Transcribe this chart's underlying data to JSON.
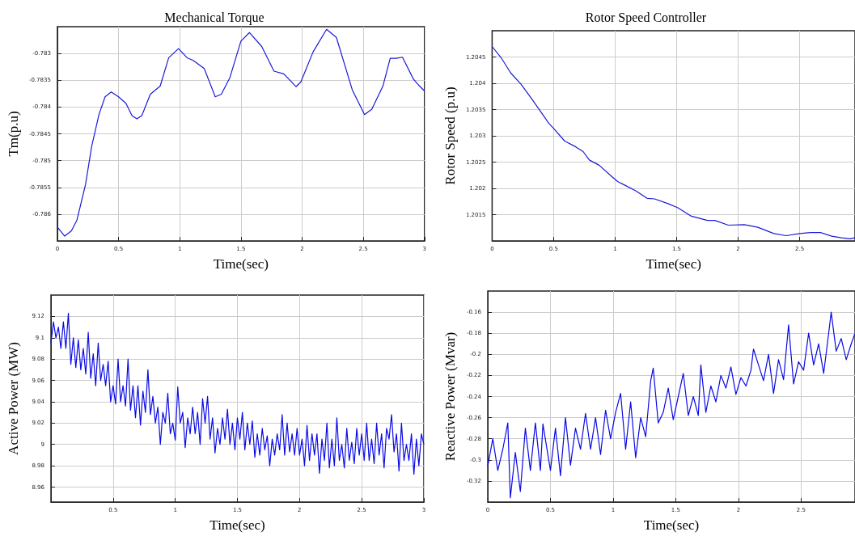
{
  "chart_data": [
    {
      "type": "line",
      "title": "Mechanical Torque",
      "xlabel": "Time(sec)",
      "ylabel": "Tm(p.u)",
      "xlim": [
        0,
        3
      ],
      "xticks": [
        0,
        0.5,
        1,
        1.5,
        2,
        2.5,
        3
      ],
      "ylim": [
        -0.7865,
        -0.7825
      ],
      "yticks": [
        -0.786,
        -0.7855,
        -0.785,
        -0.7845,
        -0.784,
        -0.7835,
        -0.783
      ],
      "grid": true,
      "marker": "none",
      "line_style": "solid",
      "series": [
        {
          "color": "#1a1ad6",
          "x": [
            0,
            0.06,
            0.115,
            0.16,
            0.23,
            0.28,
            0.34,
            0.39,
            0.44,
            0.5,
            0.56,
            0.61,
            0.65,
            0.69,
            0.76,
            0.84,
            0.91,
            0.99,
            1.06,
            1.11,
            1.2,
            1.29,
            1.34,
            1.41,
            1.5,
            1.57,
            1.67,
            1.77,
            1.85,
            1.95,
            1.99,
            2.09,
            2.2,
            2.28,
            2.41,
            2.51,
            2.57,
            2.66,
            2.72,
            2.77,
            2.82,
            2.91,
            2.96,
            3
          ],
          "values": [
            -0.78624,
            -0.78641,
            -0.78631,
            -0.78611,
            -0.78545,
            -0.78474,
            -0.78414,
            -0.78381,
            -0.78372,
            -0.78381,
            -0.78393,
            -0.78416,
            -0.78422,
            -0.78416,
            -0.78376,
            -0.78361,
            -0.78308,
            -0.78291,
            -0.78308,
            -0.78313,
            -0.78328,
            -0.78381,
            -0.78376,
            -0.78345,
            -0.78277,
            -0.78261,
            -0.78287,
            -0.78333,
            -0.78338,
            -0.78362,
            -0.78353,
            -0.78297,
            -0.78255,
            -0.7827,
            -0.78368,
            -0.78414,
            -0.78404,
            -0.78361,
            -0.78309,
            -0.78309,
            -0.78307,
            -0.78348,
            -0.78361,
            -0.7837
          ]
        }
      ]
    },
    {
      "type": "line",
      "title": "Rotor Speed Controller",
      "xlabel": "Time(sec)",
      "ylabel": "Rotor Speed (p.u)",
      "xlim": [
        0,
        2.95
      ],
      "xticks": [
        0,
        0.5,
        1,
        1.5,
        2,
        2.5
      ],
      "ylim": [
        1.201,
        1.205
      ],
      "yticks": [
        1.2015,
        1.202,
        1.2025,
        1.203,
        1.2035,
        1.204,
        1.2045
      ],
      "grid": true,
      "marker": "none",
      "line_style": "solid",
      "series": [
        {
          "color": "#1a1ad6",
          "x": [
            0,
            0.075,
            0.15,
            0.236,
            0.32,
            0.41,
            0.46,
            0.5,
            0.59,
            0.68,
            0.74,
            0.79,
            0.87,
            0.97,
            1.02,
            1.08,
            1.17,
            1.26,
            1.32,
            1.43,
            1.51,
            1.62,
            1.75,
            1.81,
            1.92,
            2.05,
            2.16,
            2.29,
            2.39,
            2.5,
            2.59,
            2.67,
            2.76,
            2.84,
            2.91,
            2.95
          ],
          "values": [
            1.2047,
            1.20448,
            1.2042,
            1.20398,
            1.20371,
            1.20341,
            1.20324,
            1.20314,
            1.2029,
            1.20279,
            1.2027,
            1.20254,
            1.20244,
            1.20223,
            1.20213,
            1.20206,
            1.20195,
            1.20181,
            1.2018,
            1.20171,
            1.20163,
            1.20147,
            1.20139,
            1.20139,
            1.2013,
            1.20131,
            1.20126,
            1.20114,
            1.2011,
            1.20114,
            1.20116,
            1.20116,
            1.20109,
            1.20106,
            1.20104,
            1.20106
          ]
        }
      ]
    },
    {
      "type": "line",
      "xlabel": "Time(sec)",
      "ylabel": "Active Power (MW)",
      "xlim": [
        0,
        3
      ],
      "xticks": [
        0.5,
        1,
        1.5,
        2,
        2.5,
        3
      ],
      "ylim": [
        8.946,
        9.14
      ],
      "yticks": [
        8.96,
        8.98,
        9,
        9.02,
        9.04,
        9.06,
        9.08,
        9.1,
        9.12
      ],
      "grid": true,
      "marker": "none",
      "line_style": "solid",
      "series": [
        {
          "color": "#0a0ae6",
          "x": [
            0,
            0.02,
            0.04,
            0.06,
            0.08,
            0.1,
            0.12,
            0.14,
            0.16,
            0.18,
            0.2,
            0.22,
            0.24,
            0.26,
            0.28,
            0.3,
            0.32,
            0.34,
            0.36,
            0.38,
            0.4,
            0.42,
            0.44,
            0.46,
            0.48,
            0.5,
            0.52,
            0.54,
            0.56,
            0.58,
            0.6,
            0.62,
            0.64,
            0.66,
            0.68,
            0.7,
            0.72,
            0.74,
            0.76,
            0.78,
            0.8,
            0.82,
            0.84,
            0.86,
            0.88,
            0.9,
            0.92,
            0.94,
            0.96,
            0.98,
            1,
            1.02,
            1.04,
            1.06,
            1.08,
            1.1,
            1.12,
            1.14,
            1.16,
            1.18,
            1.2,
            1.22,
            1.24,
            1.26,
            1.28,
            1.3,
            1.32,
            1.34,
            1.36,
            1.38,
            1.4,
            1.42,
            1.44,
            1.46,
            1.48,
            1.5,
            1.52,
            1.54,
            1.56,
            1.58,
            1.6,
            1.62,
            1.64,
            1.66,
            1.68,
            1.7,
            1.72,
            1.74,
            1.76,
            1.78,
            1.8,
            1.82,
            1.84,
            1.86,
            1.88,
            1.9,
            1.92,
            1.94,
            1.96,
            1.98,
            2,
            2.02,
            2.04,
            2.06,
            2.08,
            2.1,
            2.12,
            2.14,
            2.16,
            2.18,
            2.2,
            2.22,
            2.24,
            2.26,
            2.28,
            2.3,
            2.32,
            2.34,
            2.36,
            2.38,
            2.4,
            2.42,
            2.44,
            2.46,
            2.48,
            2.5,
            2.52,
            2.54,
            2.56,
            2.58,
            2.6,
            2.62,
            2.64,
            2.66,
            2.68,
            2.7,
            2.72,
            2.74,
            2.76,
            2.78,
            2.8,
            2.82,
            2.84,
            2.86,
            2.88,
            2.9,
            2.92,
            2.94,
            2.96,
            2.98,
            3
          ],
          "values": [
            9.095,
            9.115,
            9.1,
            9.11,
            9.09,
            9.115,
            9.09,
            9.123,
            9.075,
            9.1,
            9.072,
            9.098,
            9.07,
            9.09,
            9.066,
            9.105,
            9.062,
            9.085,
            9.055,
            9.095,
            9.06,
            9.075,
            9.055,
            9.078,
            9.04,
            9.055,
            9.038,
            9.08,
            9.04,
            9.055,
            9.036,
            9.08,
            9.032,
            9.055,
            9.025,
            9.055,
            9.018,
            9.05,
            9.03,
            9.07,
            9.028,
            9.045,
            9.02,
            9.035,
            9.0,
            9.03,
            9.02,
            9.048,
            9.01,
            9.02,
            9.004,
            9.054,
            9.02,
            9.03,
            8.997,
            9.025,
            9.01,
            9.035,
            9.01,
            9.03,
            9.0,
            9.043,
            9.02,
            9.045,
            9.005,
            9.025,
            8.992,
            9.015,
            9.0,
            9.025,
            9.005,
            9.033,
            9.0,
            9.02,
            8.995,
            9.025,
            9.005,
            9.03,
            8.995,
            9.02,
            9.0,
            9.022,
            8.988,
            9.01,
            8.99,
            9.015,
            8.995,
            9.008,
            8.98,
            9.005,
            8.99,
            9.01,
            8.995,
            9.028,
            8.99,
            9.02,
            8.993,
            9.01,
            8.99,
            9.015,
            8.99,
            9.005,
            8.98,
            9.018,
            8.985,
            9.01,
            8.99,
            9.01,
            8.973,
            9.005,
            8.985,
            9.02,
            8.978,
            9.005,
            8.98,
            9.025,
            8.985,
            9.0,
            8.978,
            9.015,
            8.985,
            9.002,
            8.982,
            9.015,
            8.99,
            9.01,
            8.985,
            9.02,
            8.985,
            9.005,
            8.982,
            9.02,
            8.99,
            9.01,
            8.978,
            9.015,
            9.005,
            9.028,
            8.993,
            9.01,
            8.975,
            9.02,
            8.985,
            9.0,
            8.985,
            9.01,
            8.972,
            9.005,
            8.98,
            9.01,
            9.0
          ]
        }
      ]
    },
    {
      "type": "line",
      "xlabel": "Time(sec)",
      "ylabel": "Reactive Power (Mvar)",
      "xlim": [
        0,
        2.93
      ],
      "xticks": [
        0,
        0.5,
        1,
        1.5,
        2,
        2.5
      ],
      "ylim": [
        -0.34,
        -0.14
      ],
      "yticks": [
        -0.32,
        -0.3,
        -0.28,
        -0.26,
        -0.24,
        -0.22,
        -0.2,
        -0.18,
        -0.16
      ],
      "grid": true,
      "marker": "none",
      "line_style": "solid",
      "series": [
        {
          "color": "#0a0ae6",
          "x": [
            0,
            0.04,
            0.08,
            0.12,
            0.16,
            0.18,
            0.22,
            0.26,
            0.3,
            0.34,
            0.38,
            0.42,
            0.44,
            0.5,
            0.54,
            0.58,
            0.62,
            0.66,
            0.7,
            0.74,
            0.78,
            0.82,
            0.86,
            0.9,
            0.94,
            0.98,
            1.02,
            1.06,
            1.1,
            1.14,
            1.18,
            1.22,
            1.26,
            1.3,
            1.32,
            1.36,
            1.4,
            1.44,
            1.48,
            1.52,
            1.56,
            1.6,
            1.64,
            1.68,
            1.7,
            1.74,
            1.78,
            1.82,
            1.86,
            1.9,
            1.94,
            1.98,
            2.02,
            2.06,
            2.1,
            2.12,
            2.16,
            2.2,
            2.24,
            2.28,
            2.32,
            2.36,
            2.4,
            2.44,
            2.48,
            2.52,
            2.56,
            2.6,
            2.64,
            2.68,
            2.72,
            2.74,
            2.78,
            2.82,
            2.86,
            2.9,
            2.93
          ],
          "values": [
            -0.306,
            -0.28,
            -0.31,
            -0.29,
            -0.265,
            -0.336,
            -0.293,
            -0.33,
            -0.27,
            -0.31,
            -0.265,
            -0.31,
            -0.266,
            -0.31,
            -0.27,
            -0.315,
            -0.26,
            -0.305,
            -0.27,
            -0.29,
            -0.256,
            -0.29,
            -0.26,
            -0.295,
            -0.253,
            -0.28,
            -0.255,
            -0.237,
            -0.29,
            -0.245,
            -0.298,
            -0.26,
            -0.278,
            -0.225,
            -0.213,
            -0.265,
            -0.255,
            -0.232,
            -0.262,
            -0.24,
            -0.218,
            -0.258,
            -0.24,
            -0.258,
            -0.21,
            -0.255,
            -0.23,
            -0.245,
            -0.22,
            -0.232,
            -0.212,
            -0.238,
            -0.222,
            -0.23,
            -0.215,
            -0.195,
            -0.21,
            -0.225,
            -0.2,
            -0.237,
            -0.205,
            -0.224,
            -0.172,
            -0.228,
            -0.207,
            -0.215,
            -0.18,
            -0.21,
            -0.19,
            -0.218,
            -0.18,
            -0.16,
            -0.197,
            -0.185,
            -0.205,
            -0.19,
            -0.18
          ]
        }
      ]
    }
  ]
}
